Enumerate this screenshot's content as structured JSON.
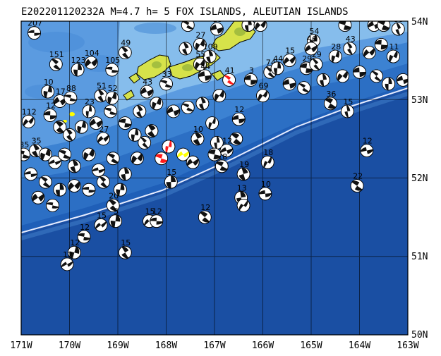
{
  "title": "E202201120232A M=4.7 h=  5 FOX ISLANDS, ALEUTIAN ISLANDS",
  "axes": {
    "lon_labels": [
      "171W",
      "170W",
      "169W",
      "168W",
      "167W",
      "166W",
      "165W",
      "164W",
      "163W"
    ],
    "lat_labels": [
      "54N",
      "53N",
      "52N",
      "51N",
      "50N"
    ],
    "lon_range": [
      -171,
      -163
    ],
    "lat_range": [
      50,
      54
    ]
  },
  "colors": {
    "deep_ocean": "#1f5fb8",
    "mid_ocean": "#2f77cc",
    "shelf": "#4b94dc",
    "shallow": "#7fb6e8",
    "land": "#d8e84a",
    "land_dark": "#6d9a2a",
    "trench_line": "#e8e8ff",
    "event_highlight": "#ff1a1a",
    "event_current": "#ffff00",
    "mechanism_dark": "#000000",
    "mechanism_light": "#ffffff"
  },
  "events": [
    {
      "lon": -170.73,
      "lat": 53.85,
      "mag": "207",
      "color": "black"
    },
    {
      "lon": -170.28,
      "lat": 53.45,
      "mag": "151",
      "color": "black"
    },
    {
      "lon": -169.83,
      "lat": 53.38,
      "mag": "123",
      "color": "black"
    },
    {
      "lon": -169.55,
      "lat": 53.47,
      "mag": "104",
      "color": "black"
    },
    {
      "lon": -169.12,
      "lat": 53.38,
      "mag": "105",
      "color": "black"
    },
    {
      "lon": -168.85,
      "lat": 53.6,
      "mag": "49",
      "color": "black"
    },
    {
      "lon": -170.45,
      "lat": 53.1,
      "mag": "10",
      "color": "black"
    },
    {
      "lon": -170.2,
      "lat": 52.98,
      "mag": "17",
      "color": "black"
    },
    {
      "lon": -169.98,
      "lat": 53.02,
      "mag": "88",
      "color": "black"
    },
    {
      "lon": -169.35,
      "lat": 53.05,
      "mag": "51",
      "color": "black"
    },
    {
      "lon": -169.12,
      "lat": 53.02,
      "mag": "52",
      "color": "black"
    },
    {
      "lon": -168.4,
      "lat": 53.1,
      "mag": "43",
      "color": "black"
    },
    {
      "lon": -168.0,
      "lat": 53.2,
      "mag": "33",
      "color": "black"
    },
    {
      "lon": -167.6,
      "lat": 53.65,
      "mag": "",
      "color": "black"
    },
    {
      "lon": -167.3,
      "lat": 53.7,
      "mag": "27",
      "color": "black"
    },
    {
      "lon": -166.95,
      "lat": 53.9,
      "mag": "13",
      "color": "black"
    },
    {
      "lon": -167.55,
      "lat": 53.95,
      "mag": "18",
      "color": "black"
    },
    {
      "lon": -167.1,
      "lat": 53.55,
      "mag": "109",
      "color": "black"
    },
    {
      "lon": -167.3,
      "lat": 53.45,
      "mag": "55",
      "color": "black"
    },
    {
      "lon": -167.2,
      "lat": 53.3,
      "mag": "44",
      "color": "black"
    },
    {
      "lon": -166.7,
      "lat": 53.25,
      "mag": "41",
      "color": "red"
    },
    {
      "lon": -166.3,
      "lat": 53.95,
      "mag": "7",
      "color": "black"
    },
    {
      "lon": -166.05,
      "lat": 53.95,
      "mag": "8",
      "color": "black"
    },
    {
      "lon": -166.25,
      "lat": 53.25,
      "mag": "3",
      "color": "black"
    },
    {
      "lon": -165.85,
      "lat": 53.35,
      "mag": "74",
      "color": "black"
    },
    {
      "lon": -165.7,
      "lat": 53.4,
      "mag": "44",
      "color": "black"
    },
    {
      "lon": -165.45,
      "lat": 53.5,
      "mag": "15",
      "color": "black"
    },
    {
      "lon": -165.1,
      "lat": 53.4,
      "mag": "29",
      "color": "black"
    },
    {
      "lon": -164.9,
      "lat": 53.45,
      "mag": "29",
      "color": "black"
    },
    {
      "lon": -164.95,
      "lat": 53.75,
      "mag": "54",
      "color": "black"
    },
    {
      "lon": -165.0,
      "lat": 53.65,
      "mag": "46",
      "color": "black"
    },
    {
      "lon": -164.3,
      "lat": 53.95,
      "mag": "64",
      "color": "black"
    },
    {
      "lon": -164.2,
      "lat": 53.65,
      "mag": "43",
      "color": "black"
    },
    {
      "lon": -164.5,
      "lat": 53.55,
      "mag": "28",
      "color": "black"
    },
    {
      "lon": -163.7,
      "lat": 53.95,
      "mag": "35",
      "color": "black"
    },
    {
      "lon": -163.5,
      "lat": 53.95,
      "mag": "15",
      "color": "black"
    },
    {
      "lon": -163.2,
      "lat": 53.9,
      "mag": "35",
      "color": "black"
    },
    {
      "lon": -163.3,
      "lat": 53.55,
      "mag": "11",
      "color": "black"
    },
    {
      "lon": -163.1,
      "lat": 53.25,
      "mag": "",
      "color": "black"
    },
    {
      "lon": -164.6,
      "lat": 52.95,
      "mag": "36",
      "color": "black"
    },
    {
      "lon": -164.25,
      "lat": 52.85,
      "mag": "15",
      "color": "black"
    },
    {
      "lon": -166.0,
      "lat": 53.05,
      "mag": "69",
      "color": "black"
    },
    {
      "lon": -166.5,
      "lat": 52.75,
      "mag": "12",
      "color": "black"
    },
    {
      "lon": -166.55,
      "lat": 52.5,
      "mag": "",
      "color": "black"
    },
    {
      "lon": -166.95,
      "lat": 52.45,
      "mag": "",
      "color": "black"
    },
    {
      "lon": -170.85,
      "lat": 52.72,
      "mag": "112",
      "color": "black"
    },
    {
      "lon": -170.4,
      "lat": 52.8,
      "mag": "12",
      "color": "black"
    },
    {
      "lon": -170.2,
      "lat": 52.65,
      "mag": "",
      "color": "black"
    },
    {
      "lon": -169.6,
      "lat": 52.85,
      "mag": "23",
      "color": "black"
    },
    {
      "lon": -169.3,
      "lat": 52.5,
      "mag": "27",
      "color": "black"
    },
    {
      "lon": -168.85,
      "lat": 52.7,
      "mag": "",
      "color": "black"
    },
    {
      "lon": -168.3,
      "lat": 52.6,
      "mag": "",
      "color": "black"
    },
    {
      "lon": -167.95,
      "lat": 52.4,
      "mag": "",
      "color": "red"
    },
    {
      "lon": -167.65,
      "lat": 52.3,
      "mag": "",
      "color": "yellow"
    },
    {
      "lon": -168.1,
      "lat": 52.25,
      "mag": "",
      "color": "red"
    },
    {
      "lon": -167.35,
      "lat": 52.5,
      "mag": "10",
      "color": "black"
    },
    {
      "lon": -167.05,
      "lat": 52.7,
      "mag": "",
      "color": "black"
    },
    {
      "lon": -166.75,
      "lat": 52.35,
      "mag": "12",
      "color": "black"
    },
    {
      "lon": -166.85,
      "lat": 52.15,
      "mag": "18",
      "color": "black"
    },
    {
      "lon": -166.4,
      "lat": 52.05,
      "mag": "19",
      "color": "black"
    },
    {
      "lon": -165.9,
      "lat": 52.2,
      "mag": "18",
      "color": "black"
    },
    {
      "lon": -163.85,
      "lat": 52.35,
      "mag": "12",
      "color": "black"
    },
    {
      "lon": -164.05,
      "lat": 51.9,
      "mag": "22",
      "color": "black"
    },
    {
      "lon": -166.45,
      "lat": 51.75,
      "mag": "13",
      "color": "black"
    },
    {
      "lon": -166.4,
      "lat": 51.65,
      "mag": "",
      "color": "black"
    },
    {
      "lon": -165.95,
      "lat": 51.8,
      "mag": "10",
      "color": "black"
    },
    {
      "lon": -167.2,
      "lat": 51.5,
      "mag": "12",
      "color": "black"
    },
    {
      "lon": -167.9,
      "lat": 51.95,
      "mag": "15",
      "color": "black"
    },
    {
      "lon": -168.35,
      "lat": 51.45,
      "mag": "15",
      "color": "black"
    },
    {
      "lon": -168.2,
      "lat": 51.45,
      "mag": "12",
      "color": "black"
    },
    {
      "lon": -169.1,
      "lat": 51.65,
      "mag": "20",
      "color": "black"
    },
    {
      "lon": -169.05,
      "lat": 51.45,
      "mag": "5",
      "color": "black"
    },
    {
      "lon": -169.35,
      "lat": 51.4,
      "mag": "15",
      "color": "black"
    },
    {
      "lon": -169.7,
      "lat": 51.25,
      "mag": "12",
      "color": "black"
    },
    {
      "lon": -168.85,
      "lat": 51.05,
      "mag": "15",
      "color": "black"
    },
    {
      "lon": -169.9,
      "lat": 51.05,
      "mag": "12",
      "color": "black"
    },
    {
      "lon": -170.05,
      "lat": 50.9,
      "mag": "12",
      "color": "black"
    },
    {
      "lon": -170.95,
      "lat": 52.3,
      "mag": "35",
      "color": "black"
    },
    {
      "lon": -170.7,
      "lat": 52.35,
      "mag": "35",
      "color": "black"
    },
    {
      "lon": -170.5,
      "lat": 52.3,
      "mag": "",
      "color": "black"
    },
    {
      "lon": -170.3,
      "lat": 52.2,
      "mag": "",
      "color": "black"
    },
    {
      "lon": -170.1,
      "lat": 52.3,
      "mag": "",
      "color": "black"
    },
    {
      "lon": -169.9,
      "lat": 52.15,
      "mag": "",
      "color": "black"
    },
    {
      "lon": -169.6,
      "lat": 52.3,
      "mag": "",
      "color": "black"
    },
    {
      "lon": -169.4,
      "lat": 52.1,
      "mag": "",
      "color": "black"
    },
    {
      "lon": -169.1,
      "lat": 52.25,
      "mag": "",
      "color": "black"
    },
    {
      "lon": -168.85,
      "lat": 52.05,
      "mag": "",
      "color": "black"
    },
    {
      "lon": -168.6,
      "lat": 52.25,
      "mag": "",
      "color": "black"
    },
    {
      "lon": -170.8,
      "lat": 52.05,
      "mag": "",
      "color": "black"
    },
    {
      "lon": -170.5,
      "lat": 51.95,
      "mag": "",
      "color": "black"
    },
    {
      "lon": -170.2,
      "lat": 51.85,
      "mag": "",
      "color": "black"
    },
    {
      "lon": -169.9,
      "lat": 51.9,
      "mag": "",
      "color": "black"
    },
    {
      "lon": -169.6,
      "lat": 51.85,
      "mag": "",
      "color": "black"
    },
    {
      "lon": -169.3,
      "lat": 51.95,
      "mag": "",
      "color": "black"
    },
    {
      "lon": -168.95,
      "lat": 51.85,
      "mag": "",
      "color": "black"
    },
    {
      "lon": -170.65,
      "lat": 51.75,
      "mag": "",
      "color": "black"
    },
    {
      "lon": -170.35,
      "lat": 51.65,
      "mag": "",
      "color": "black"
    },
    {
      "lon": -170.0,
      "lat": 52.55,
      "mag": "",
      "color": "black"
    },
    {
      "lon": -169.75,
      "lat": 52.65,
      "mag": "",
      "color": "black"
    },
    {
      "lon": -169.45,
      "lat": 52.7,
      "mag": "",
      "color": "black"
    },
    {
      "lon": -169.15,
      "lat": 52.85,
      "mag": "",
      "color": "black"
    },
    {
      "lon": -168.55,
      "lat": 52.85,
      "mag": "",
      "color": "black"
    },
    {
      "lon": -168.2,
      "lat": 52.95,
      "mag": "",
      "color": "black"
    },
    {
      "lon": -167.85,
      "lat": 52.85,
      "mag": "",
      "color": "black"
    },
    {
      "lon": -167.55,
      "lat": 52.9,
      "mag": "",
      "color": "black"
    },
    {
      "lon": -167.25,
      "lat": 52.95,
      "mag": "",
      "color": "black"
    },
    {
      "lon": -166.9,
      "lat": 53.05,
      "mag": "",
      "color": "black"
    },
    {
      "lon": -165.45,
      "lat": 53.2,
      "mag": "",
      "color": "black"
    },
    {
      "lon": -165.15,
      "lat": 53.15,
      "mag": "",
      "color": "black"
    },
    {
      "lon": -164.75,
      "lat": 53.25,
      "mag": "",
      "color": "black"
    },
    {
      "lon": -164.35,
      "lat": 53.3,
      "mag": "",
      "color": "black"
    },
    {
      "lon": -164.0,
      "lat": 53.35,
      "mag": "",
      "color": "black"
    },
    {
      "lon": -163.65,
      "lat": 53.3,
      "mag": "",
      "color": "black"
    },
    {
      "lon": -163.4,
      "lat": 53.2,
      "mag": "",
      "color": "black"
    },
    {
      "lon": -163.8,
      "lat": 53.6,
      "mag": "",
      "color": "black"
    },
    {
      "lon": -163.55,
      "lat": 53.7,
      "mag": "",
      "color": "black"
    },
    {
      "lon": -168.45,
      "lat": 52.45,
      "mag": "",
      "color": "black"
    },
    {
      "lon": -168.65,
      "lat": 52.55,
      "mag": "",
      "color": "black"
    },
    {
      "lon": -167.45,
      "lat": 52.2,
      "mag": "",
      "color": "black"
    },
    {
      "lon": -167.0,
      "lat": 52.3,
      "mag": "",
      "color": "black"
    }
  ]
}
